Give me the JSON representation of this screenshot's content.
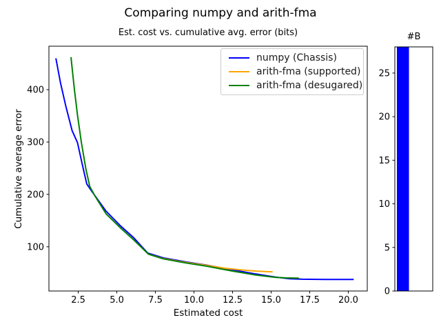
{
  "figure": {
    "suptitle": "Comparing numpy and arith-fma",
    "background": "#ffffff"
  },
  "chart_data": [
    {
      "type": "line",
      "title": "Est. cost vs. cumulative avg. error (bits)",
      "xlabel": "Estimated cost",
      "ylabel": "Cumulative average error",
      "xlim": [
        0.6,
        21.23
      ],
      "ylim": [
        15.5,
        483
      ],
      "grid": false,
      "legend_position": "upper right",
      "xticks": {
        "values": [
          2.5,
          5,
          7.5,
          10,
          12.5,
          15,
          17.5,
          20
        ],
        "labels": [
          "2.5",
          "5.0",
          "7.5",
          "10.0",
          "12.5",
          "15.0",
          "17.5",
          "20.0"
        ]
      },
      "yticks": {
        "values": [
          100,
          200,
          300,
          400
        ],
        "labels": [
          "100",
          "200",
          "300",
          "400"
        ]
      },
      "series": [
        {
          "name": "numpy (Chassis)",
          "color": "#0000ff",
          "points": [
            [
              1.05,
              460
            ],
            [
              1.35,
              413
            ],
            [
              1.7,
              368
            ],
            [
              2.1,
              322
            ],
            [
              2.45,
              299
            ],
            [
              2.8,
              252
            ],
            [
              3.05,
              220
            ],
            [
              3.35,
              207
            ],
            [
              4.3,
              168
            ],
            [
              5.2,
              141
            ],
            [
              6.1,
              117
            ],
            [
              7.0,
              88
            ],
            [
              8.0,
              79
            ],
            [
              9.5,
              71
            ],
            [
              10.8,
              65
            ],
            [
              12.5,
              56
            ],
            [
              14.0,
              48
            ],
            [
              15.3,
              42
            ],
            [
              16.2,
              39
            ],
            [
              17.0,
              38
            ],
            [
              18.5,
              37.5
            ],
            [
              20.35,
              37.5
            ]
          ]
        },
        {
          "name": "arith-fma (supported)",
          "color": "#ffa500",
          "points": [
            [
              7.05,
              86
            ],
            [
              8.0,
              77.5
            ],
            [
              9.5,
              70
            ],
            [
              10.8,
              64.5
            ],
            [
              12.0,
              59
            ],
            [
              13.0,
              56
            ],
            [
              14.0,
              53.5
            ],
            [
              15.1,
              52
            ]
          ]
        },
        {
          "name": "arith-fma (desugared)",
          "color": "#008000",
          "points": [
            [
              2.03,
              462
            ],
            [
              2.25,
              400
            ],
            [
              2.45,
              352
            ],
            [
              2.7,
              300
            ],
            [
              3.0,
              248
            ],
            [
              3.25,
              215
            ],
            [
              3.6,
              196
            ],
            [
              4.3,
              163
            ],
            [
              5.2,
              137
            ],
            [
              6.1,
              113
            ],
            [
              7.05,
              86
            ],
            [
              8.0,
              77
            ],
            [
              9.5,
              69
            ],
            [
              10.8,
              63
            ],
            [
              12.5,
              53.5
            ],
            [
              14.0,
              46
            ],
            [
              15.3,
              41.5
            ],
            [
              16.0,
              40.5
            ],
            [
              16.8,
              40
            ]
          ]
        }
      ]
    },
    {
      "type": "bar",
      "title": "#B",
      "categories": [
        ""
      ],
      "values": [
        28
      ],
      "bar_color": "#0000ff",
      "ylim": [
        0,
        28
      ],
      "yticks": {
        "values": [
          0,
          5,
          10,
          15,
          20,
          25
        ],
        "labels": [
          "0",
          "5",
          "10",
          "15",
          "20",
          "25"
        ]
      }
    }
  ]
}
